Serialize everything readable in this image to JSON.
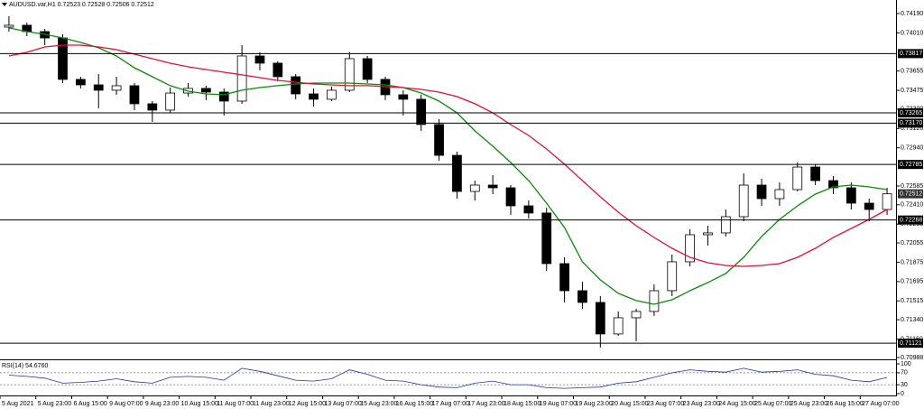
{
  "chart_data": {
    "type": "candlestick",
    "title": "AUDUSD.var,H1  0.72523 0.72528 0.72506 0.72512",
    "categories": [
      "5 Aug 2021",
      null,
      "5 Aug 23:00",
      null,
      "6 Aug 15:00",
      null,
      "9 Aug 07:00",
      null,
      "9 Aug 23:00",
      null,
      "10 Aug 15:00",
      null,
      "11 Aug 07:00",
      null,
      "11 Aug 23:00",
      null,
      "12 Aug 15:00",
      null,
      "13 Aug 07:00",
      null,
      "15 Aug 23:00",
      null,
      "16 Aug 15:00",
      null,
      "17 Aug 07:00",
      null,
      "17 Aug 23:00",
      null,
      "18 Aug 15:00",
      null,
      "19 Aug 07:00",
      null,
      "19 Aug 23:00",
      null,
      "20 Aug 15:00",
      null,
      "23 Aug 07:00",
      null,
      "23 Aug 23:00",
      null,
      "24 Aug 15:00",
      null,
      "25 Aug 07:00",
      null,
      "25 Aug 23:00",
      null,
      "26 Aug 15:00",
      null,
      "27 Aug 07:00",
      null
    ],
    "open": [
      0.74064,
      0.74081,
      0.74022,
      0.73963,
      0.73577,
      0.73526,
      0.73476,
      0.73518,
      0.7335,
      0.73291,
      0.7345,
      0.73493,
      0.73459,
      0.73375,
      0.73795,
      0.73728,
      0.73602,
      0.73442,
      0.73392,
      0.73476,
      0.7377,
      0.73577,
      0.73434,
      0.73392,
      0.73157,
      0.7287,
      0.72534,
      0.72593,
      0.72568,
      0.724,
      0.72333,
      0.71862,
      0.7161,
      0.71501,
      0.71207,
      0.71358,
      0.71417,
      0.7161,
      0.71879,
      0.72131,
      0.72148,
      0.72299,
      0.72593,
      0.72467,
      0.72551,
      0.72761,
      0.72635,
      0.72568,
      0.72425,
      0.72366
    ],
    "high": [
      0.74165,
      0.74106,
      0.74047,
      0.73997,
      0.73602,
      0.73627,
      0.73602,
      0.73543,
      0.73375,
      0.73501,
      0.73543,
      0.73518,
      0.73493,
      0.73896,
      0.73829,
      0.73745,
      0.73627,
      0.73493,
      0.7351,
      0.73829,
      0.73795,
      0.73602,
      0.73476,
      0.73434,
      0.73207,
      0.72904,
      0.72635,
      0.72686,
      0.72593,
      0.7245,
      0.72383,
      0.71921,
      0.71694,
      0.7156,
      0.71417,
      0.71442,
      0.71669,
      0.71946,
      0.72182,
      0.72215,
      0.72366,
      0.72703,
      0.72652,
      0.72618,
      0.72803,
      0.72787,
      0.72677,
      0.72618,
      0.72467,
      0.72568
    ],
    "low": [
      0.74022,
      0.7398,
      0.73896,
      0.73543,
      0.73493,
      0.73308,
      0.73434,
      0.73291,
      0.73182,
      0.73266,
      0.73417,
      0.73384,
      0.73241,
      0.7335,
      0.73661,
      0.7356,
      0.73392,
      0.73325,
      0.73375,
      0.73459,
      0.73543,
      0.73384,
      0.73241,
      0.73097,
      0.7282,
      0.72467,
      0.7245,
      0.72509,
      0.72316,
      0.72282,
      0.71795,
      0.71501,
      0.71442,
      0.71081,
      0.7119,
      0.7114,
      0.71375,
      0.7156,
      0.71837,
      0.7203,
      0.72114,
      0.72257,
      0.724,
      0.724,
      0.72534,
      0.72593,
      0.72509,
      0.72366,
      0.72257,
      0.72316
    ],
    "close": [
      0.74081,
      0.74022,
      0.73963,
      0.73577,
      0.73526,
      0.73476,
      0.73518,
      0.7335,
      0.73291,
      0.7345,
      0.73493,
      0.73459,
      0.73375,
      0.73795,
      0.73728,
      0.73602,
      0.73442,
      0.73392,
      0.73476,
      0.7377,
      0.73577,
      0.73434,
      0.73392,
      0.73157,
      0.7287,
      0.72534,
      0.72593,
      0.72568,
      0.724,
      0.72333,
      0.71862,
      0.7161,
      0.71501,
      0.71207,
      0.71358,
      0.71417,
      0.7161,
      0.71879,
      0.72131,
      0.72148,
      0.72299,
      0.72593,
      0.72467,
      0.72551,
      0.72761,
      0.72635,
      0.72568,
      0.72425,
      0.72366,
      0.72512
    ],
    "overlays": [
      {
        "color": "#0a8a0a",
        "values": [
          0.74056,
          0.74022,
          0.73997,
          0.73963,
          0.73921,
          0.73871,
          0.73795,
          0.73686,
          0.73602,
          0.73518,
          0.73467,
          0.73442,
          0.73434,
          0.73476,
          0.73501,
          0.73518,
          0.73534,
          0.73543,
          0.73543,
          0.73543,
          0.73534,
          0.73526,
          0.73501,
          0.7345,
          0.73375,
          0.73266,
          0.73097,
          0.72955,
          0.72803,
          0.72635,
          0.72425,
          0.72198,
          0.71879,
          0.71711,
          0.71585,
          0.71518,
          0.71484,
          0.71526,
          0.7161,
          0.71686,
          0.7177,
          0.71921,
          0.72114,
          0.72274,
          0.724,
          0.72509,
          0.72576,
          0.72593,
          0.72576,
          0.72551
        ]
      },
      {
        "color": "#e0103c",
        "values": [
          0.73795,
          0.73829,
          0.73879,
          0.73896,
          0.73896,
          0.73879,
          0.73854,
          0.73812,
          0.7377,
          0.73728,
          0.73694,
          0.73669,
          0.73644,
          0.73619,
          0.73593,
          0.73568,
          0.73551,
          0.73534,
          0.73526,
          0.73518,
          0.73518,
          0.73509,
          0.73501,
          0.73484,
          0.73459,
          0.73417,
          0.7335,
          0.73266,
          0.73156,
          0.73055,
          0.72929,
          0.72787,
          0.72635,
          0.72484,
          0.72341,
          0.72215,
          0.72106,
          0.72005,
          0.71921,
          0.7187,
          0.71845,
          0.71837,
          0.71845,
          0.71862,
          0.71921,
          0.72005,
          0.72106,
          0.7219,
          0.72274,
          0.72366
        ]
      }
    ],
    "ylim": [
      0.70971,
      0.74316
    ],
    "yticks": [
      {
        "value": 0.7419,
        "label": "0.74190"
      },
      {
        "value": 0.7401,
        "label": "0.74010"
      },
      {
        "value": 0.73655,
        "label": "0.73655"
      },
      {
        "value": 0.73475,
        "label": "0.73475"
      },
      {
        "value": 0.733,
        "label": "0.73300"
      },
      {
        "value": 0.7312,
        "label": "0.73120"
      },
      {
        "value": 0.7294,
        "label": "0.72940"
      },
      {
        "value": 0.72585,
        "label": "0.72585"
      },
      {
        "value": 0.7241,
        "label": "0.72410"
      },
      {
        "value": 0.7223,
        "label": "0.72230"
      },
      {
        "value": 0.72055,
        "label": "0.72055"
      },
      {
        "value": 0.71875,
        "label": "0.71875"
      },
      {
        "value": 0.71695,
        "label": "0.71695"
      },
      {
        "value": 0.71515,
        "label": "0.71515"
      },
      {
        "value": 0.7134,
        "label": "0.71340"
      },
      {
        "value": 0.7116,
        "label": "0.71160"
      },
      {
        "value": 0.70988,
        "label": "0.70988"
      }
    ],
    "levels": {
      "values": [
        0.73817,
        0.73265,
        0.7317,
        0.72785,
        0.72268,
        0.71121
      ],
      "value_labels": [
        "0.73817",
        "0.73265",
        "0.73170",
        "0.72785",
        "0.72268",
        "0.71121"
      ]
    },
    "current_price": {
      "values": [
        0.72512
      ],
      "value_labels": [
        "0.72512"
      ]
    },
    "indicator": {
      "label": "RSI(14) 54.6760",
      "color": "#2233aa",
      "values": [
        62,
        58,
        52,
        35,
        38,
        42,
        50,
        40,
        35,
        55,
        58,
        55,
        45,
        85,
        75,
        60,
        45,
        42,
        50,
        80,
        65,
        45,
        42,
        30,
        22,
        20,
        35,
        42,
        30,
        30,
        20,
        18,
        20,
        22,
        35,
        40,
        55,
        70,
        80,
        75,
        72,
        85,
        72,
        75,
        80,
        65,
        60,
        45,
        40,
        54.676
      ],
      "ylim": [
        0,
        100
      ],
      "yticks": [
        100,
        70,
        30,
        0
      ],
      "levels": [
        70,
        30
      ]
    }
  }
}
